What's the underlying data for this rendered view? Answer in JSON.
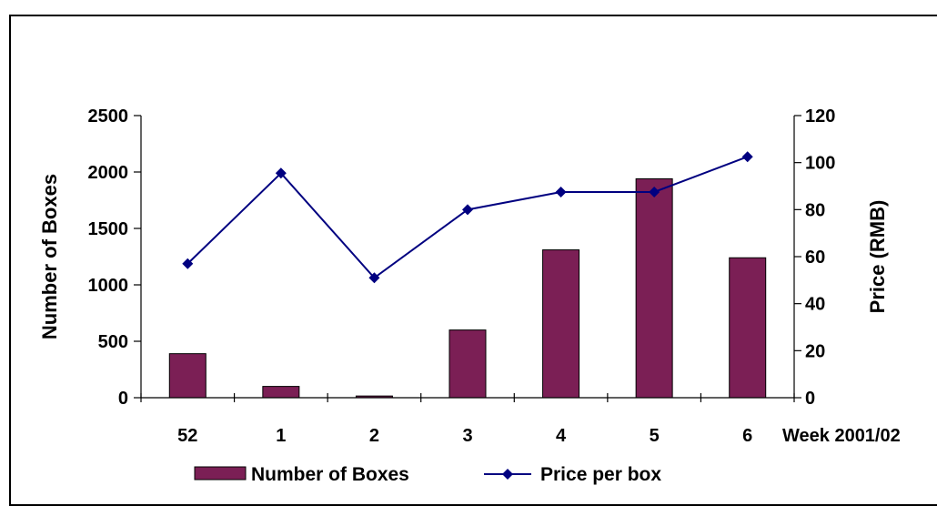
{
  "chart_data": {
    "type": "bar",
    "title": "",
    "categories": [
      "52",
      "1",
      "2",
      "3",
      "4",
      "5",
      "6"
    ],
    "xlabel": "Week 2001/02",
    "ylabel": "Number of Boxes",
    "y2label": "Price (RMB)",
    "ylim": [
      0,
      2500
    ],
    "y2lim": [
      0,
      120
    ],
    "yticks": [
      0,
      500,
      1000,
      1500,
      2000,
      2500
    ],
    "y2ticks": [
      0,
      20,
      40,
      60,
      80,
      100,
      120
    ],
    "series": [
      {
        "name": "Number of Boxes",
        "type": "bar",
        "axis": "left",
        "color": "#7B1F55",
        "values": [
          390,
          100,
          15,
          600,
          1310,
          1940,
          1240
        ]
      },
      {
        "name": "Price per box",
        "type": "line",
        "axis": "right",
        "color": "#000080",
        "marker": "diamond",
        "values": [
          57,
          95.5,
          51,
          80,
          87.5,
          87.5,
          102.5
        ]
      }
    ],
    "grid": false,
    "legend_position": "bottom"
  }
}
